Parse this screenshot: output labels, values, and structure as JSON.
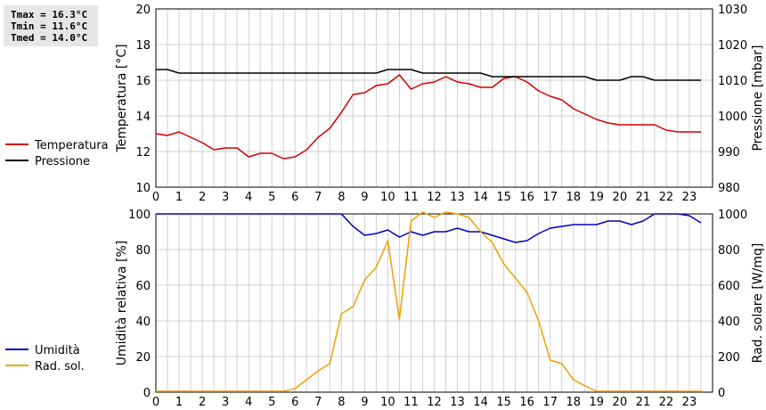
{
  "stats": {
    "tmax": "Tmax = 16.3°C",
    "tmin": "Tmin = 11.6°C",
    "tmed": "Tmed = 14.0°C"
  },
  "colors": {
    "temperature": "#d00000",
    "pressure": "#000000",
    "humidity": "#0000c0",
    "radiation": "#f0a000",
    "grid": "#d0d0d0"
  },
  "chart_data": [
    {
      "type": "line",
      "x_ticks": [
        "0",
        "1",
        "2",
        "3",
        "4",
        "5",
        "6",
        "7",
        "8",
        "9",
        "10",
        "11",
        "12",
        "13",
        "14",
        "15",
        "16",
        "17",
        "18",
        "19",
        "20",
        "21",
        "22",
        "23"
      ],
      "xlim": [
        0,
        24
      ],
      "ylabel": "Temperatura [°C]",
      "y2label": "Pressione [mbar]",
      "ylim": [
        10,
        20
      ],
      "y_ticks": [
        "10",
        "12",
        "14",
        "16",
        "18",
        "20"
      ],
      "y2lim": [
        980,
        1030
      ],
      "y2_ticks": [
        "980",
        "990",
        "1000",
        "1010",
        "1020",
        "1030"
      ],
      "legend": [
        "Temperatura",
        "Pressione"
      ],
      "series": [
        {
          "name": "Temperatura",
          "axis": "left",
          "x": [
            0,
            0.5,
            1,
            1.5,
            2,
            2.5,
            3,
            3.5,
            4,
            4.5,
            5,
            5.5,
            6,
            6.5,
            7,
            7.5,
            8,
            8.5,
            9,
            9.5,
            10,
            10.5,
            11,
            11.5,
            12,
            12.5,
            13,
            13.5,
            14,
            14.5,
            15,
            15.5,
            16,
            16.5,
            17,
            17.5,
            18,
            18.5,
            19,
            19.5,
            20,
            20.5,
            21,
            21.5,
            22,
            22.5,
            23,
            23.5
          ],
          "values": [
            13.0,
            12.9,
            13.1,
            12.8,
            12.5,
            12.1,
            12.2,
            12.2,
            11.7,
            11.9,
            11.9,
            11.6,
            11.7,
            12.1,
            12.8,
            13.3,
            14.2,
            15.2,
            15.3,
            15.7,
            15.8,
            16.3,
            15.5,
            15.8,
            15.9,
            16.2,
            15.9,
            15.8,
            15.6,
            15.6,
            16.1,
            16.2,
            15.9,
            15.4,
            15.1,
            14.9,
            14.4,
            14.1,
            13.8,
            13.6,
            13.5,
            13.5,
            13.5,
            13.5,
            13.2,
            13.1,
            13.1,
            13.1
          ]
        },
        {
          "name": "Pressione",
          "axis": "right",
          "x": [
            0,
            0.5,
            1,
            1.5,
            2,
            2.5,
            3,
            3.5,
            4,
            4.5,
            5,
            5.5,
            6,
            6.5,
            7,
            7.5,
            8,
            8.5,
            9,
            9.5,
            10,
            10.5,
            11,
            11.5,
            12,
            12.5,
            13,
            13.5,
            14,
            14.5,
            15,
            15.5,
            16,
            16.5,
            17,
            17.5,
            18,
            18.5,
            19,
            19.5,
            20,
            20.5,
            21,
            21.5,
            22,
            22.5,
            23,
            23.5
          ],
          "values": [
            1013,
            1013,
            1012,
            1012,
            1012,
            1012,
            1012,
            1012,
            1012,
            1012,
            1012,
            1012,
            1012,
            1012,
            1012,
            1012,
            1012,
            1012,
            1012,
            1012,
            1013,
            1013,
            1013,
            1012,
            1012,
            1012,
            1012,
            1012,
            1012,
            1011,
            1011,
            1011,
            1011,
            1011,
            1011,
            1011,
            1011,
            1011,
            1010,
            1010,
            1010,
            1011,
            1011,
            1010,
            1010,
            1010,
            1010,
            1010
          ]
        }
      ]
    },
    {
      "type": "line",
      "x_ticks": [
        "0",
        "1",
        "2",
        "3",
        "4",
        "5",
        "6",
        "7",
        "8",
        "9",
        "10",
        "11",
        "12",
        "13",
        "14",
        "15",
        "16",
        "17",
        "18",
        "19",
        "20",
        "21",
        "22",
        "23"
      ],
      "xlim": [
        0,
        24
      ],
      "ylabel": "Umidità relativa [%]",
      "y2label": "Rad. solare [W/mq]",
      "ylim": [
        0,
        100
      ],
      "y_ticks": [
        "0",
        "20",
        "40",
        "60",
        "80",
        "100"
      ],
      "y2lim": [
        0,
        1000
      ],
      "y2_ticks": [
        "0",
        "200",
        "400",
        "600",
        "800",
        "1000"
      ],
      "legend": [
        "Umidità",
        "Rad. sol."
      ],
      "series": [
        {
          "name": "Umidità",
          "axis": "left",
          "x": [
            0,
            0.5,
            1,
            1.5,
            2,
            2.5,
            3,
            3.5,
            4,
            4.5,
            5,
            5.5,
            6,
            6.5,
            7,
            7.5,
            8,
            8.5,
            9,
            9.5,
            10,
            10.5,
            11,
            11.5,
            12,
            12.5,
            13,
            13.5,
            14,
            14.5,
            15,
            15.5,
            16,
            16.5,
            17,
            17.5,
            18,
            18.5,
            19,
            19.5,
            20,
            20.5,
            21,
            21.5,
            22,
            22.5,
            23,
            23.5
          ],
          "values": [
            100,
            100,
            100,
            100,
            100,
            100,
            100,
            100,
            100,
            100,
            100,
            100,
            100,
            100,
            100,
            100,
            100,
            93,
            88,
            89,
            91,
            87,
            90,
            88,
            90,
            90,
            92,
            90,
            90,
            88,
            86,
            84,
            85,
            89,
            92,
            93,
            94,
            94,
            94,
            96,
            96,
            94,
            96,
            100,
            100,
            100,
            99,
            95
          ]
        },
        {
          "name": "Rad. sol.",
          "axis": "right",
          "x": [
            0,
            0.5,
            1,
            1.5,
            2,
            2.5,
            3,
            3.5,
            4,
            4.5,
            5,
            5.5,
            6,
            6.5,
            7,
            7.5,
            8,
            8.5,
            9,
            9.5,
            10,
            10.5,
            11,
            11.5,
            12,
            12.5,
            13,
            13.5,
            14,
            14.5,
            15,
            15.5,
            16,
            16.5,
            17,
            17.5,
            18,
            18.5,
            19,
            19.5,
            20,
            20.5,
            21,
            21.5,
            22,
            22.5,
            23,
            23.5
          ],
          "values": [
            5,
            5,
            5,
            5,
            5,
            5,
            5,
            5,
            5,
            5,
            5,
            5,
            20,
            70,
            120,
            160,
            440,
            480,
            630,
            700,
            850,
            410,
            960,
            1010,
            980,
            1010,
            1000,
            980,
            900,
            840,
            720,
            640,
            560,
            400,
            180,
            160,
            70,
            35,
            5,
            5,
            5,
            5,
            5,
            5,
            5,
            5,
            5,
            5
          ]
        }
      ]
    }
  ]
}
